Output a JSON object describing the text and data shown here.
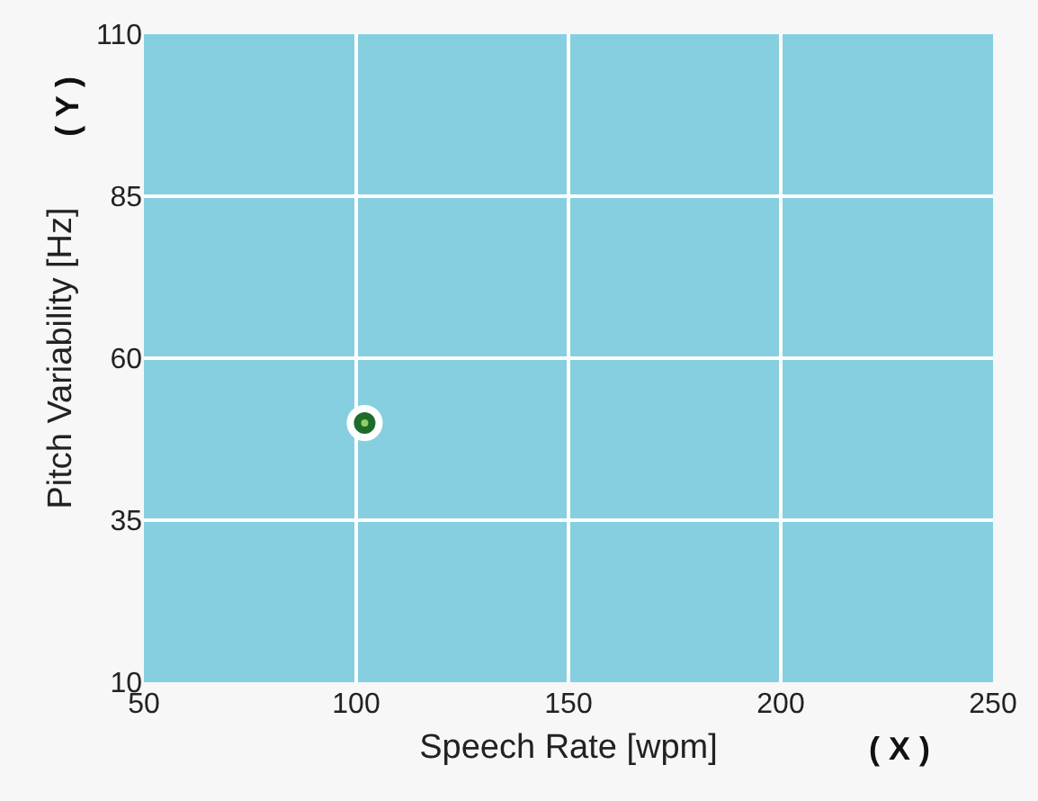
{
  "chart_data": {
    "type": "scatter",
    "xlabel": "Speech Rate [wpm]",
    "ylabel": "Pitch Variability [Hz]",
    "annotations": [
      "( X )",
      "( Y )"
    ],
    "x": [
      102
    ],
    "series": [
      {
        "color": "#1f6b2a",
        "values": [
          50
        ]
      }
    ],
    "xlim": [
      50,
      250
    ],
    "xticks": [
      50,
      100,
      150,
      200,
      250
    ],
    "ylim": [
      10,
      110
    ],
    "yticks": [
      10,
      35,
      60,
      85,
      110
    ],
    "grid": true,
    "marker": "circle"
  }
}
